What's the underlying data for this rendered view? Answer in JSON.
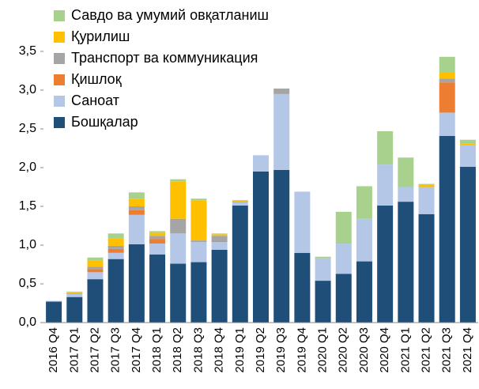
{
  "chart_data": {
    "type": "stacked_bar",
    "categories": [
      "2016 Q4",
      "2017 Q1",
      "2017 Q2",
      "2017 Q3",
      "2017 Q4",
      "2018 Q1",
      "2018 Q2",
      "2018 Q3",
      "2018 Q4",
      "2019 Q1",
      "2019 Q2",
      "2019 Q3",
      "2019 Q4",
      "2020 Q1",
      "2020 Q2",
      "2020 Q3",
      "2020 Q4",
      "2021 Q1",
      "2021 Q2",
      "2021 Q3",
      "2021 Q4"
    ],
    "series": [
      {
        "name": "Бошқалар",
        "color": "#1f4e79",
        "values": [
          0.27,
          0.33,
          0.56,
          0.82,
          1.01,
          0.88,
          0.76,
          0.78,
          0.94,
          1.51,
          1.95,
          1.97,
          0.9,
          0.54,
          0.63,
          0.79,
          1.51,
          1.56,
          1.4,
          2.41,
          2.01
        ]
      },
      {
        "name": "Саноат",
        "color": "#b4c7e7",
        "values": [
          0.01,
          0.04,
          0.09,
          0.08,
          0.38,
          0.14,
          0.39,
          0.26,
          0.1,
          0.04,
          0.21,
          0.98,
          0.79,
          0.29,
          0.39,
          0.55,
          0.53,
          0.19,
          0.35,
          0.3,
          0.28
        ]
      },
      {
        "name": "Қишлоқ",
        "color": "#ed7d31",
        "values": [
          0,
          0,
          0.04,
          0.05,
          0.06,
          0.06,
          0,
          0,
          0.01,
          0,
          0,
          0,
          0,
          0,
          0,
          0,
          0,
          0,
          0,
          0.39,
          0
        ]
      },
      {
        "name": "Транспорт ва коммуникация",
        "color": "#a5a5a5",
        "values": [
          0,
          0.01,
          0.03,
          0.04,
          0.05,
          0.04,
          0.19,
          0.02,
          0.07,
          0.01,
          0,
          0.07,
          0,
          0,
          0,
          0,
          0,
          0,
          0,
          0.05,
          0
        ]
      },
      {
        "name": "Қурилиш",
        "color": "#ffc000",
        "values": [
          0,
          0.01,
          0.08,
          0.1,
          0.1,
          0.04,
          0.48,
          0.52,
          0.02,
          0.01,
          0,
          0,
          0,
          0,
          0,
          0,
          0,
          0,
          0.03,
          0.08,
          0.02
        ]
      },
      {
        "name": "Савдо ва умумий овқатланиш",
        "color": "#a9d18e",
        "values": [
          0,
          0.01,
          0.04,
          0.06,
          0.08,
          0.02,
          0.03,
          0.02,
          0.01,
          0.01,
          0,
          0,
          0,
          0.02,
          0.41,
          0.42,
          0.43,
          0.38,
          0.01,
          0.2,
          0.05
        ]
      }
    ],
    "ylim": [
      0,
      3.5
    ],
    "yticks": [
      {
        "value": 0,
        "label": "0,0"
      },
      {
        "value": 0.5,
        "label": "0,5"
      },
      {
        "value": 1,
        "label": "1,0"
      },
      {
        "value": 1.5,
        "label": "1,5"
      },
      {
        "value": 2,
        "label": "2,0"
      },
      {
        "value": 2.5,
        "label": "2,5"
      },
      {
        "value": 3,
        "label": "3,0"
      },
      {
        "value": 3.5,
        "label": "3,5"
      }
    ],
    "legend": "top-left"
  }
}
